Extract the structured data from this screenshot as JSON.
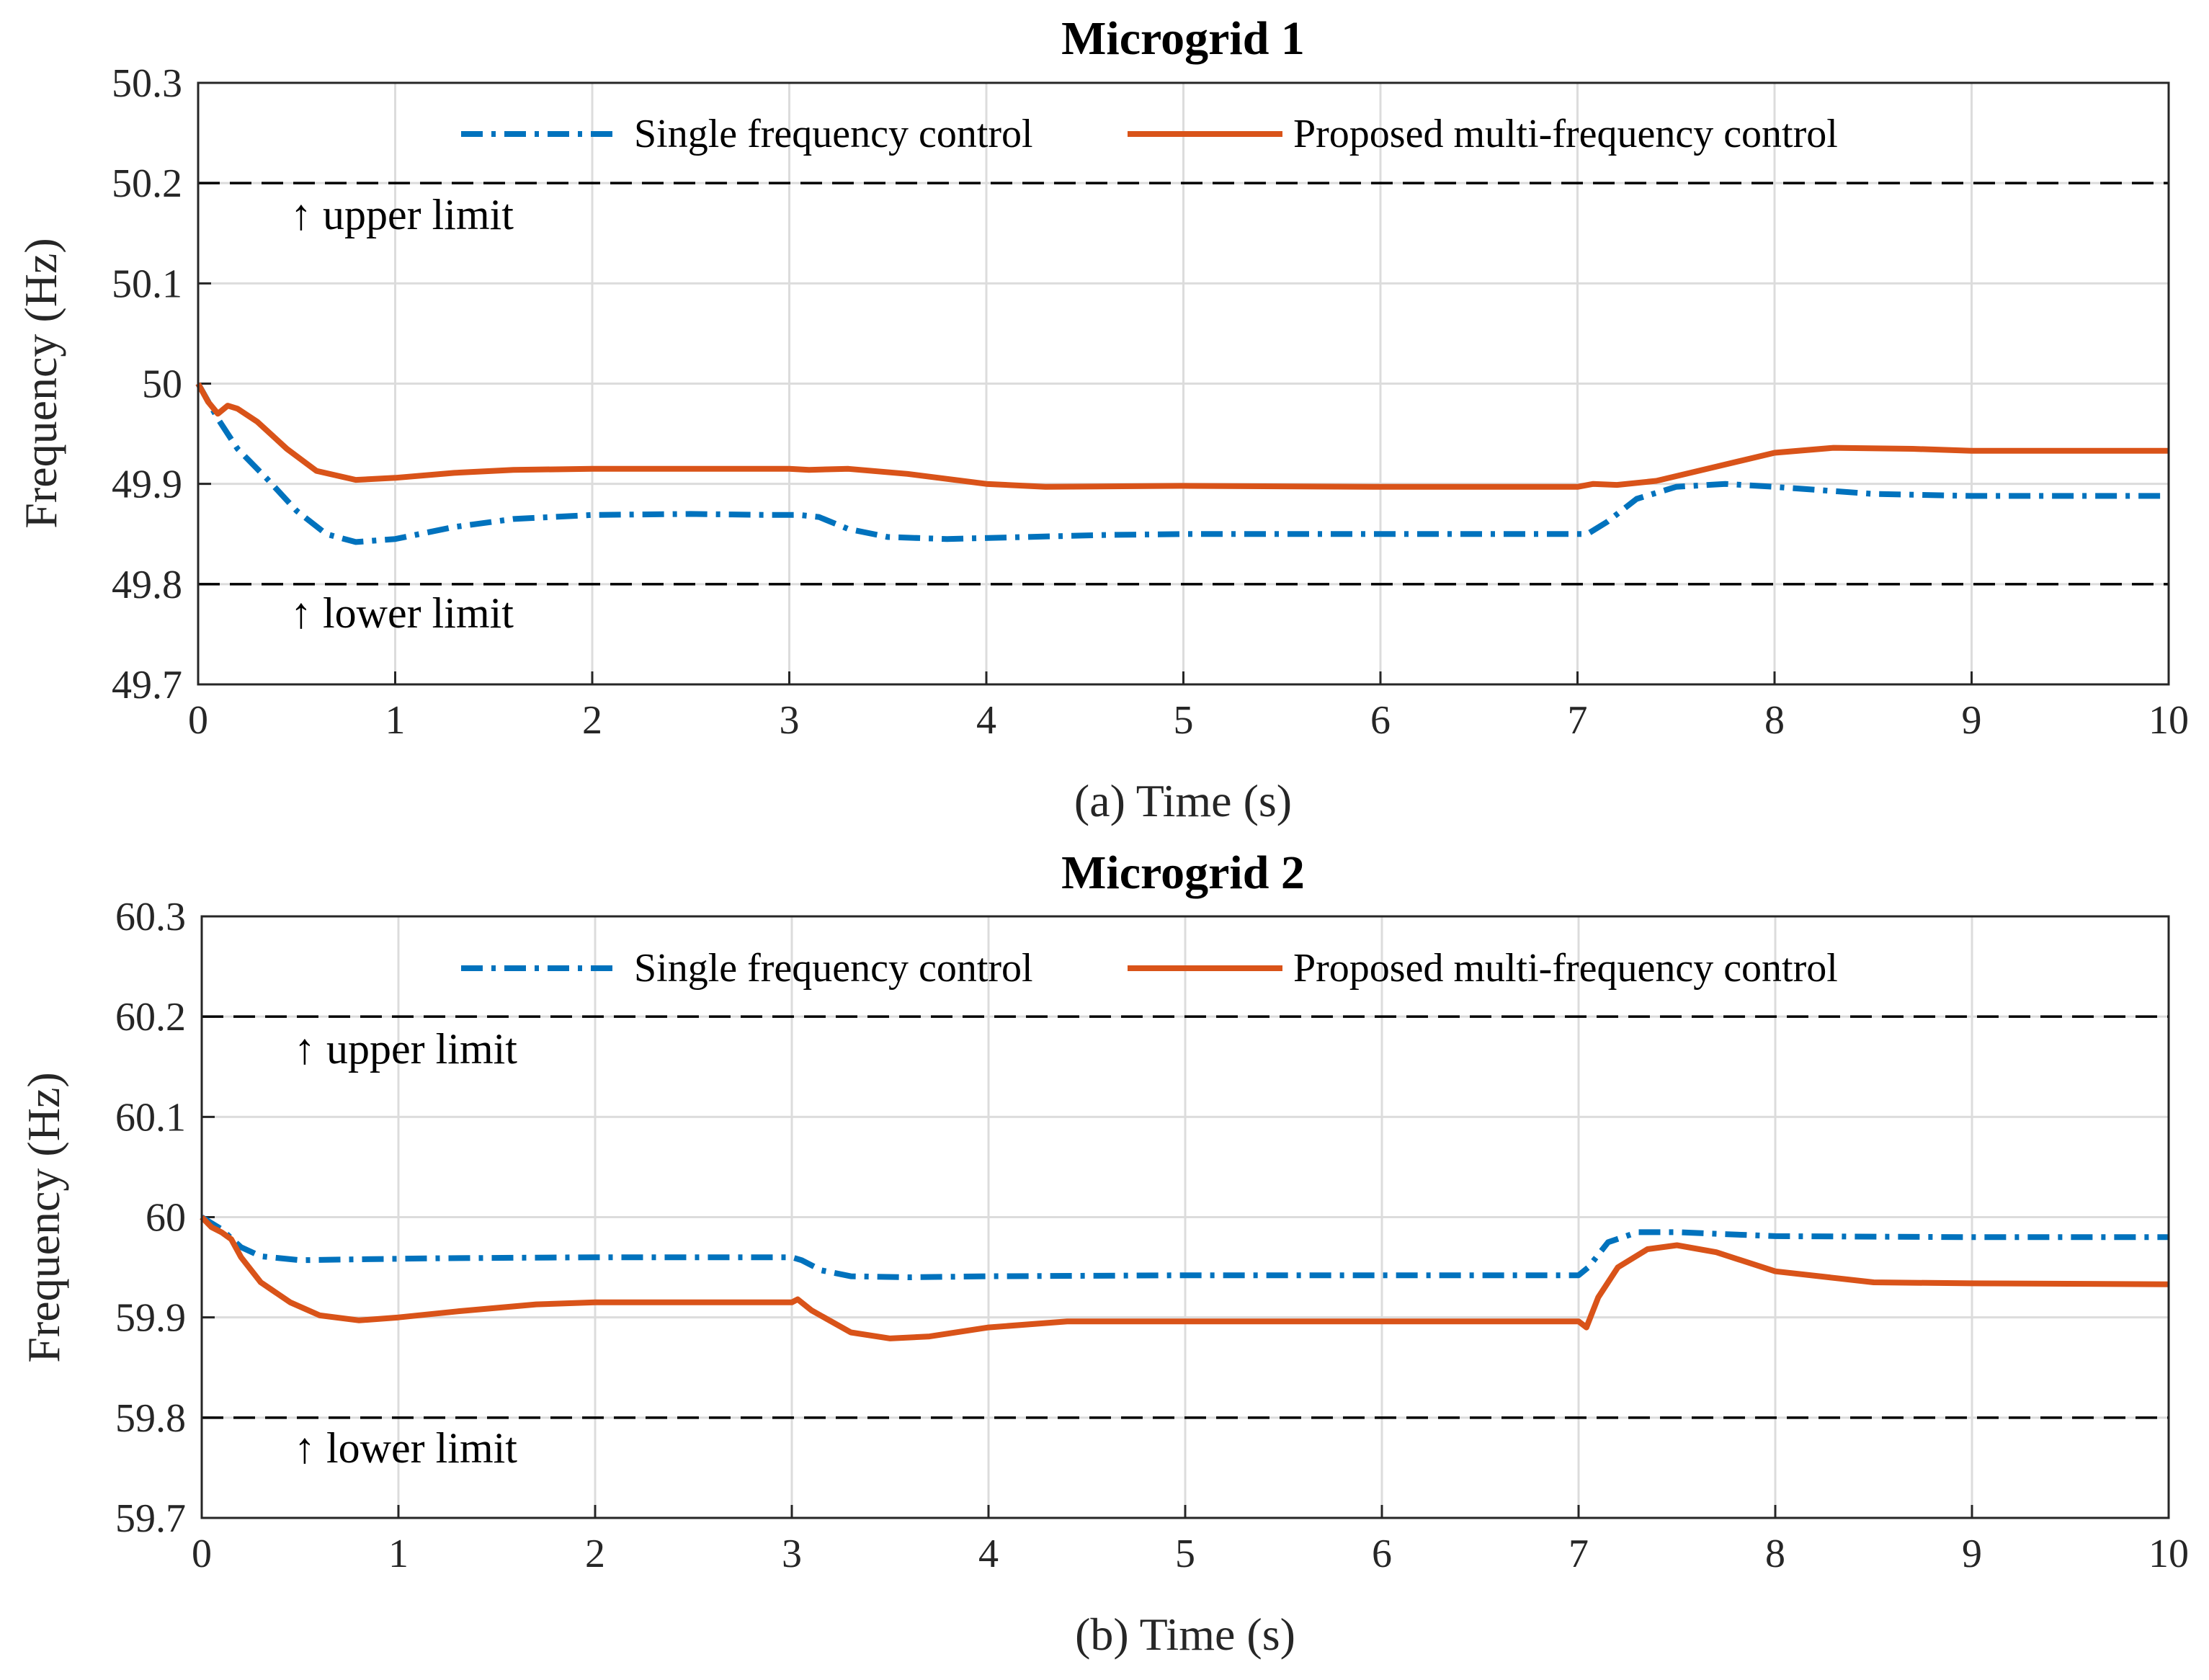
{
  "colors": {
    "single": "#0072BD",
    "proposed": "#D95319",
    "limit": "#000000",
    "grid": "#dcdcdc"
  },
  "chart_data": [
    {
      "type": "line",
      "title": "Microgrid 1",
      "xlabel": "(a) Time (s)",
      "ylabel": "Frequency (Hz)",
      "xlim": [
        0,
        10
      ],
      "ylim": [
        49.7,
        50.3
      ],
      "xticks": [
        "0",
        "1",
        "2",
        "3",
        "4",
        "5",
        "6",
        "7",
        "8",
        "9",
        "10"
      ],
      "yticks": [
        "49.7",
        "49.8",
        "49.9",
        "50",
        "50.1",
        "50.2",
        "50.3"
      ],
      "grid": true,
      "legend": {
        "placement": "top-center",
        "entries": [
          "Single frequency control",
          "Proposed multi-frequency control"
        ]
      },
      "limits": [
        {
          "name": "upper",
          "y": 50.2,
          "label": "↑ upper limit"
        },
        {
          "name": "lower",
          "y": 49.8,
          "label": "↑ lower limit"
        }
      ],
      "series": [
        {
          "name": "Single frequency control",
          "style": "dashdot",
          "x": [
            0,
            0.1,
            0.2,
            0.35,
            0.5,
            0.65,
            0.8,
            1.0,
            1.3,
            1.6,
            2.0,
            2.5,
            2.9,
            3.05,
            3.15,
            3.3,
            3.5,
            3.8,
            4.2,
            4.6,
            5.0,
            6.0,
            7.0,
            7.05,
            7.15,
            7.3,
            7.5,
            7.75,
            8.0,
            8.5,
            9.0,
            10.0
          ],
          "values": [
            50.0,
            49.965,
            49.935,
            49.905,
            49.873,
            49.85,
            49.842,
            49.845,
            49.857,
            49.865,
            49.869,
            49.87,
            49.869,
            49.869,
            49.867,
            49.855,
            49.847,
            49.845,
            49.847,
            49.849,
            49.85,
            49.85,
            49.85,
            49.85,
            49.862,
            49.885,
            49.897,
            49.9,
            49.897,
            49.89,
            49.888,
            49.888
          ]
        },
        {
          "name": "Proposed multi-frequency control",
          "style": "solid",
          "x": [
            0,
            0.05,
            0.1,
            0.15,
            0.2,
            0.3,
            0.45,
            0.6,
            0.8,
            1.0,
            1.3,
            1.6,
            2.0,
            3.0,
            3.1,
            3.3,
            3.6,
            4.0,
            4.3,
            5.0,
            6.0,
            7.0,
            7.08,
            7.2,
            7.4,
            7.7,
            8.0,
            8.3,
            8.7,
            9.0,
            10.0
          ],
          "values": [
            50.0,
            49.982,
            49.97,
            49.978,
            49.975,
            49.962,
            49.935,
            49.913,
            49.904,
            49.906,
            49.911,
            49.914,
            49.915,
            49.915,
            49.914,
            49.915,
            49.91,
            49.9,
            49.897,
            49.898,
            49.897,
            49.897,
            49.9,
            49.899,
            49.903,
            49.917,
            49.931,
            49.936,
            49.935,
            49.933,
            49.933
          ]
        }
      ]
    },
    {
      "type": "line",
      "title": "Microgrid 2",
      "xlabel": "(b) Time (s)",
      "ylabel": "Frequency (Hz)",
      "xlim": [
        0,
        10
      ],
      "ylim": [
        59.7,
        60.3
      ],
      "xticks": [
        "0",
        "1",
        "2",
        "3",
        "4",
        "5",
        "6",
        "7",
        "8",
        "9",
        "10"
      ],
      "yticks": [
        "59.7",
        "59.8",
        "59.9",
        "60",
        "60.1",
        "60.2",
        "60.3"
      ],
      "grid": true,
      "legend": {
        "placement": "top-center",
        "entries": [
          "Single frequency control",
          "Proposed multi-frequency control"
        ]
      },
      "limits": [
        {
          "name": "upper",
          "y": 60.2,
          "label": "↑ upper limit"
        },
        {
          "name": "lower",
          "y": 59.8,
          "label": "↑ lower limit"
        }
      ],
      "series": [
        {
          "name": "Single frequency control",
          "style": "dashdot",
          "x": [
            0,
            0.1,
            0.2,
            0.3,
            0.5,
            0.8,
            1.2,
            2.0,
            3.0,
            3.05,
            3.15,
            3.3,
            3.6,
            4.0,
            5.0,
            6.0,
            7.0,
            7.05,
            7.15,
            7.3,
            7.5,
            8.0,
            9.0,
            10.0
          ],
          "values": [
            60.0,
            59.988,
            59.97,
            59.961,
            59.957,
            59.958,
            59.959,
            59.96,
            59.96,
            59.957,
            59.947,
            59.941,
            59.94,
            59.941,
            59.942,
            59.942,
            59.942,
            59.95,
            59.975,
            59.985,
            59.985,
            59.981,
            59.98,
            59.98
          ]
        },
        {
          "name": "Proposed multi-frequency control",
          "style": "solid",
          "x": [
            0,
            0.05,
            0.1,
            0.15,
            0.2,
            0.3,
            0.45,
            0.6,
            0.8,
            1.0,
            1.3,
            1.7,
            2.0,
            3.0,
            3.03,
            3.1,
            3.3,
            3.5,
            3.7,
            4.0,
            4.4,
            5.0,
            6.0,
            7.0,
            7.04,
            7.1,
            7.2,
            7.35,
            7.5,
            7.7,
            8.0,
            8.5,
            9.0,
            10.0
          ],
          "values": [
            60.0,
            59.99,
            59.985,
            59.978,
            59.96,
            59.935,
            59.915,
            59.902,
            59.897,
            59.9,
            59.906,
            59.913,
            59.915,
            59.915,
            59.918,
            59.907,
            59.885,
            59.879,
            59.881,
            59.89,
            59.896,
            59.896,
            59.896,
            59.896,
            59.89,
            59.92,
            59.95,
            59.968,
            59.972,
            59.965,
            59.946,
            59.935,
            59.934,
            59.933
          ]
        }
      ]
    }
  ]
}
